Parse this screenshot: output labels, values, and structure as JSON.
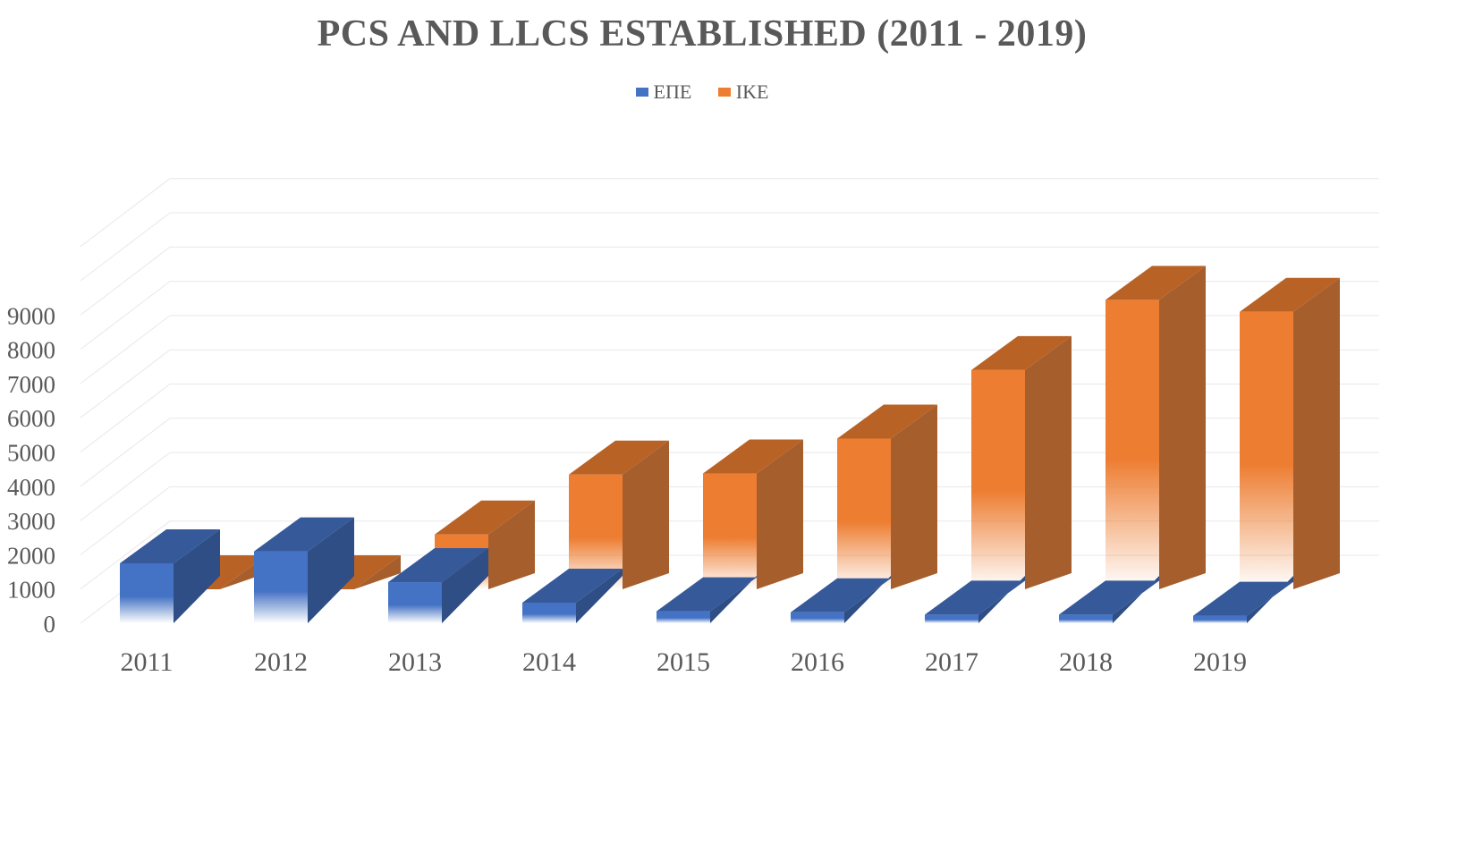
{
  "chart_data": {
    "type": "bar",
    "title": "PCS AND LLCS ESTABLISHED (2011 - 2019)",
    "categories": [
      "2011",
      "2012",
      "2013",
      "2014",
      "2015",
      "2016",
      "2017",
      "2018",
      "2019"
    ],
    "series": [
      {
        "name": "ΕΠΕ",
        "values": [
          1750,
          2100,
          1200,
          600,
          350,
          320,
          250,
          250,
          220
        ],
        "color": "#4472C4"
      },
      {
        "name": "ΙΚΕ",
        "values": [
          0,
          0,
          1600,
          3350,
          3380,
          4400,
          6400,
          8450,
          8100
        ],
        "color": "#ED7D31"
      }
    ],
    "yticks": [
      0,
      1000,
      2000,
      3000,
      4000,
      5000,
      6000,
      7000,
      8000,
      9000
    ],
    "ylim": [
      0,
      11000
    ],
    "grid": true,
    "legend_position": "top"
  }
}
